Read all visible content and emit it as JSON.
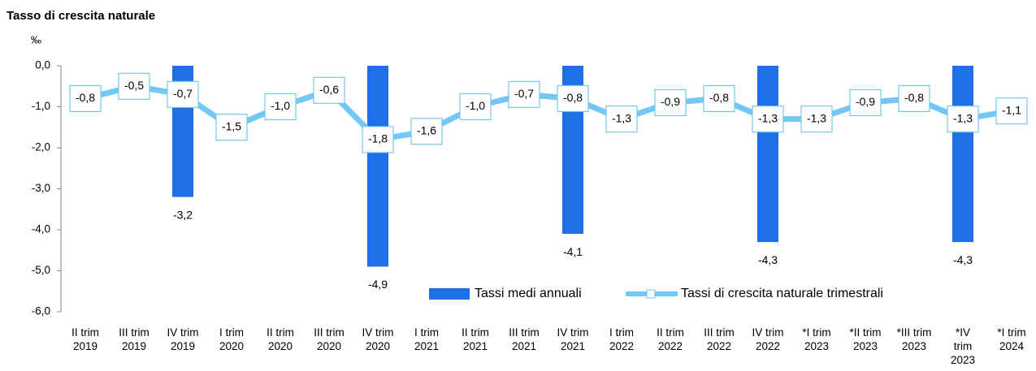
{
  "chart_data": {
    "type": "combo",
    "title": "Tasso di crescita naturale",
    "ylabel": "‰",
    "categories": [
      "II trim\n2019",
      "III trim\n2019",
      "IV trim\n2019",
      "I trim\n2020",
      "II trim\n2020",
      "III trim\n2020",
      "IV trim\n2020",
      "I trim\n2021",
      "II trim\n2021",
      "III trim\n2021",
      "IV trim\n2021",
      "I trim\n2022",
      "II trim\n2022",
      "III trim\n2022",
      "IV trim\n2022",
      "*I trim\n2023",
      "*II trim\n2023",
      "*III trim\n2023",
      "*IV\ntrim\n2023",
      "*I trim\n2024"
    ],
    "ylim": [
      -6,
      0
    ],
    "yticks": [
      {
        "value": 0,
        "label": "0,0"
      },
      {
        "value": -1,
        "label": "-1,0"
      },
      {
        "value": -2,
        "label": "-2,0"
      },
      {
        "value": -3,
        "label": "-3,0"
      },
      {
        "value": -4,
        "label": "-4,0"
      },
      {
        "value": -5,
        "label": "-5,0"
      },
      {
        "value": -6,
        "label": "-6,0"
      }
    ],
    "grid": false,
    "series": [
      {
        "name": "Tassi medi annuali",
        "type": "bar",
        "color": "#1f6fe6",
        "values": [
          null,
          null,
          -3.2,
          null,
          null,
          null,
          -4.9,
          null,
          null,
          null,
          -4.1,
          null,
          null,
          null,
          -4.3,
          null,
          null,
          null,
          -4.3,
          null
        ],
        "value_labels": [
          null,
          null,
          "-3,2",
          null,
          null,
          null,
          "-4,9",
          null,
          null,
          null,
          "-4,1",
          null,
          null,
          null,
          "-4,3",
          null,
          null,
          null,
          "-4,3",
          null
        ]
      },
      {
        "name": "Tassi di crescita naturale trimestrali",
        "type": "line",
        "color": "#73c7f4",
        "values": [
          -0.8,
          -0.5,
          -0.7,
          -1.5,
          -1.0,
          -0.6,
          -1.8,
          -1.6,
          -1.0,
          -0.7,
          -0.8,
          -1.3,
          -0.9,
          -0.8,
          -1.3,
          -1.3,
          -0.9,
          -0.8,
          -1.3,
          -1.1
        ],
        "value_labels": [
          "-0,8",
          "-0,5",
          "-0,7",
          "-1,5",
          "-1,0",
          "-0,6",
          "-1,8",
          "-1,6",
          "-1,0",
          "-0,7",
          "-0,8",
          "-1,3",
          "-0,9",
          "-0,8",
          "-1,3",
          "-1,3",
          "-0,9",
          "-0,8",
          "-1,3",
          "-1,1"
        ]
      }
    ]
  }
}
